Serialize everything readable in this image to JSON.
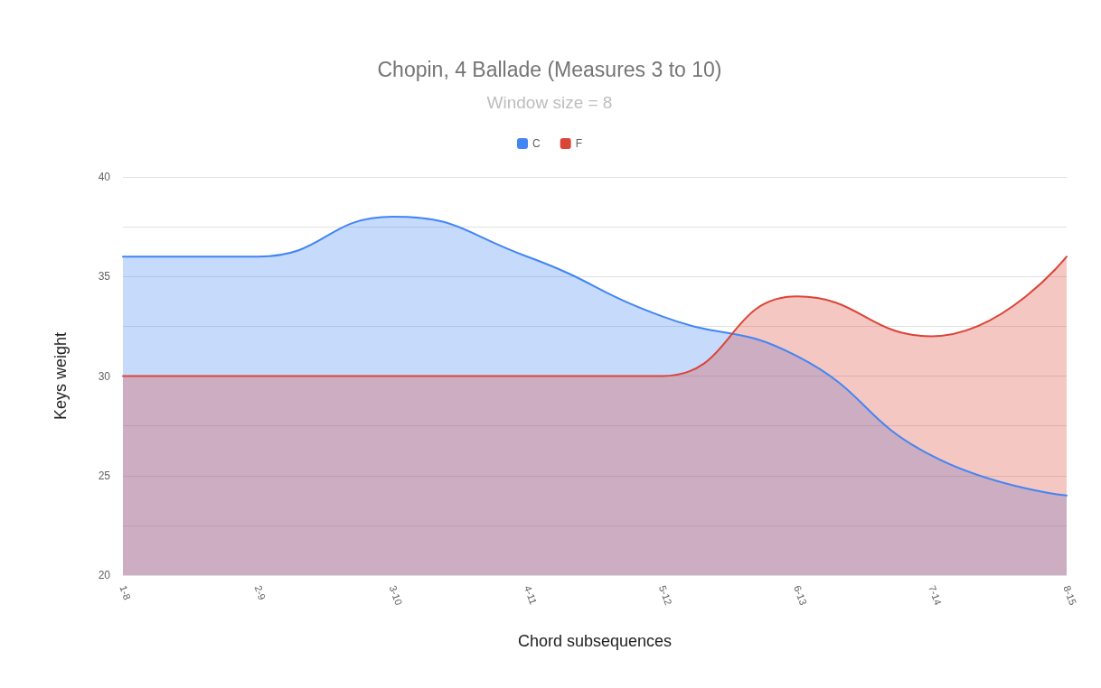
{
  "chart_data": {
    "type": "area",
    "title": "Chopin, 4 Ballade (Measures 3 to 10)",
    "subtitle": "Window size = 8",
    "xlabel": "Chord subsequences",
    "ylabel": "Keys weight",
    "categories": [
      "1-8",
      "2-9",
      "3-10",
      "4-11",
      "5-12",
      "6-13",
      "7-14",
      "8-15"
    ],
    "series": [
      {
        "name": "C",
        "color": "#4285f4",
        "values": [
          36,
          36,
          38,
          36,
          33,
          31,
          26,
          24
        ]
      },
      {
        "name": "F",
        "color": "#db4437",
        "values": [
          30,
          30,
          30,
          30,
          30,
          34,
          32,
          36
        ]
      }
    ],
    "ylim": [
      20,
      40
    ],
    "yticks": [
      20,
      {
        "value": 22.5,
        "label": null
      },
      25,
      {
        "value": 27.5,
        "label": null
      },
      30,
      {
        "value": 32.5,
        "label": null
      },
      35,
      {
        "value": 37.5,
        "label": null
      },
      40
    ],
    "grid": "y",
    "legend": "top",
    "marker": "none",
    "line_style": "solid"
  }
}
